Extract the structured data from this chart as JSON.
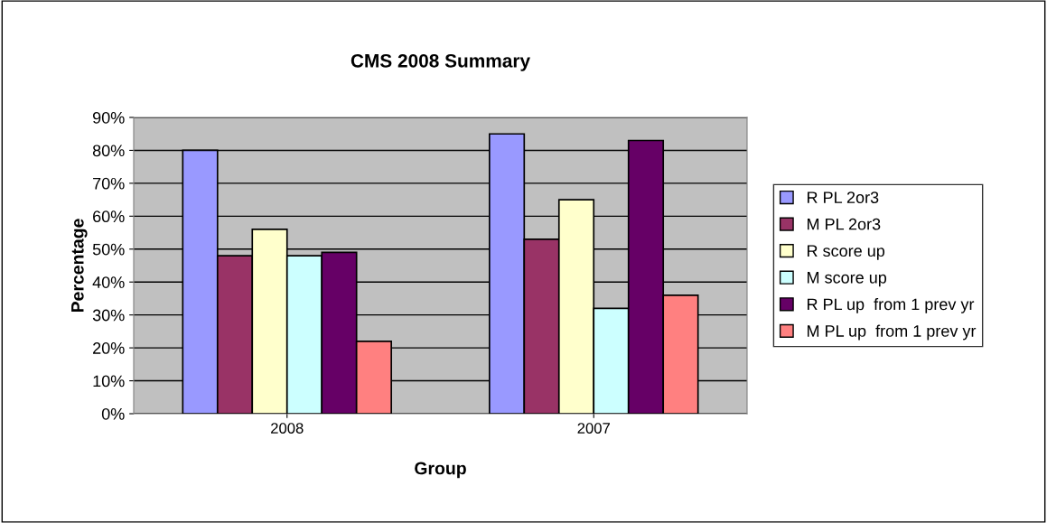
{
  "chart_data": {
    "type": "bar",
    "title": "CMS 2008 Summary",
    "xlabel": "Group",
    "ylabel": "Percentage",
    "categories": [
      "2008",
      "2007"
    ],
    "series": [
      {
        "name": "R PL 2or3",
        "color": "#9999ff",
        "values": [
          80,
          85
        ]
      },
      {
        "name": "M PL 2or3",
        "color": "#993366",
        "values": [
          48,
          53
        ]
      },
      {
        "name": "R score up",
        "color": "#ffffcc",
        "values": [
          56,
          65
        ]
      },
      {
        "name": "M score up",
        "color": "#ccffff",
        "values": [
          48,
          32
        ]
      },
      {
        "name": "R PL up  from 1 prev yr",
        "color": "#660066",
        "values": [
          49,
          83
        ]
      },
      {
        "name": "M PL up  from 1 prev yr",
        "color": "#ff8080",
        "values": [
          22,
          36
        ]
      }
    ],
    "ylim": [
      0,
      90
    ],
    "yticks": [
      {
        "value": 0,
        "label": "0%"
      },
      {
        "value": 10,
        "label": "10%"
      },
      {
        "value": 20,
        "label": "20%"
      },
      {
        "value": 30,
        "label": "30%"
      },
      {
        "value": 40,
        "label": "40%"
      },
      {
        "value": 50,
        "label": "50%"
      },
      {
        "value": 60,
        "label": "60%"
      },
      {
        "value": 70,
        "label": "70%"
      },
      {
        "value": 80,
        "label": "80%"
      },
      {
        "value": 90,
        "label": "90%"
      }
    ],
    "grid": "y",
    "legend": "right"
  }
}
